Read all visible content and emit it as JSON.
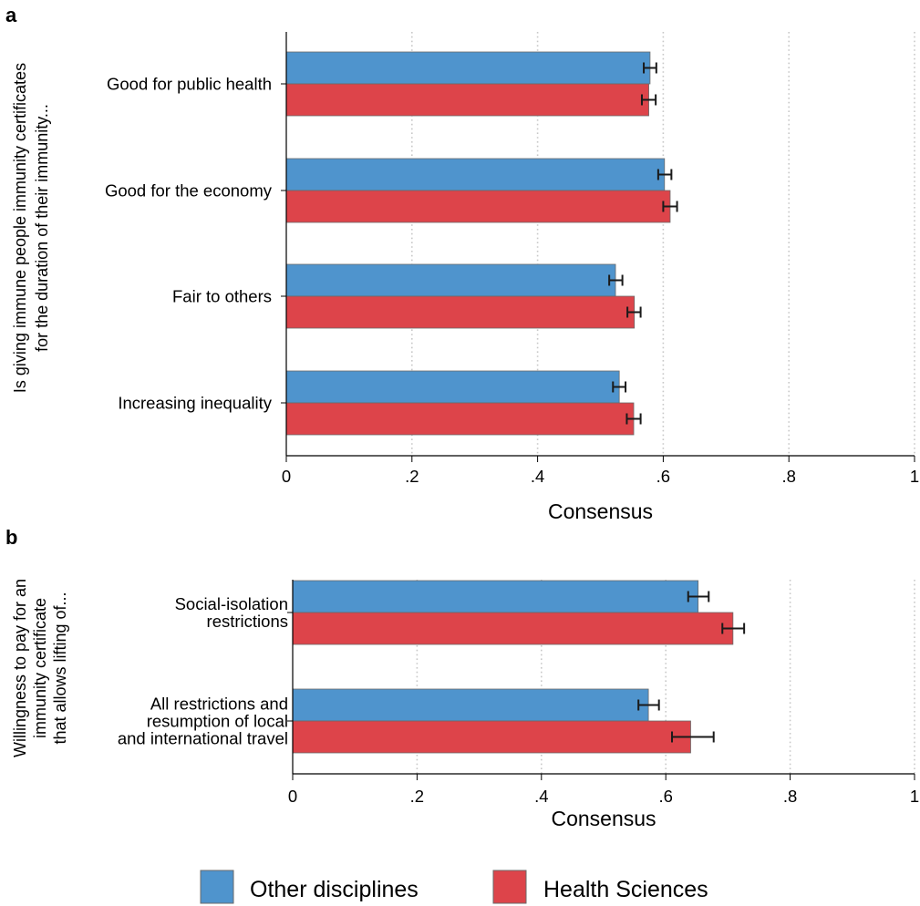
{
  "colors": {
    "other": "#4f94cd",
    "health": "#dd444a",
    "bar_edge": "#6a6a6a",
    "errorbar": "#1a1a1a",
    "grid": "#c8c8c8"
  },
  "legend": {
    "placement": "bottom-center",
    "items": [
      {
        "label": "Other disciplines",
        "color": "#4f94cd"
      },
      {
        "label": "Health Sciences",
        "color": "#dd444a"
      }
    ]
  },
  "chart_data": [
    {
      "panel": "a",
      "type": "bar",
      "orientation": "horizontal",
      "ylabel_lines": [
        "Is giving immune people immunity certificates",
        "for the duration of their immunity..."
      ],
      "xlabel": "Consensus",
      "xlim": [
        0,
        1
      ],
      "xticks": [
        0,
        0.2,
        0.4,
        0.6,
        0.8,
        1
      ],
      "xtick_labels": [
        "0",
        ".2",
        ".4",
        ".6",
        ".8",
        "1"
      ],
      "grid": "vertical dotted",
      "categories": [
        {
          "label_lines": [
            "Good for public health"
          ]
        },
        {
          "label_lines": [
            "Good for the economy"
          ]
        },
        {
          "label_lines": [
            "Fair to others"
          ]
        },
        {
          "label_lines": [
            "Increasing inequality"
          ]
        }
      ],
      "series": [
        {
          "name": "Other disciplines",
          "values": [
            0.579,
            0.602,
            0.524,
            0.53
          ],
          "err_low": [
            0.569,
            0.592,
            0.514,
            0.52
          ],
          "err_high": [
            0.589,
            0.613,
            0.535,
            0.54
          ]
        },
        {
          "name": "Health Sciences",
          "values": [
            0.577,
            0.611,
            0.554,
            0.553
          ],
          "err_low": [
            0.566,
            0.6,
            0.543,
            0.542
          ],
          "err_high": [
            0.588,
            0.622,
            0.564,
            0.564
          ]
        }
      ]
    },
    {
      "panel": "b",
      "type": "bar",
      "orientation": "horizontal",
      "ylabel_lines": [
        "Willingness to pay for an",
        "immunity certificate",
        "that allows lifting of..."
      ],
      "xlabel": "Consensus",
      "xlim": [
        0,
        1
      ],
      "xticks": [
        0,
        0.2,
        0.4,
        0.6,
        0.8,
        1
      ],
      "xtick_labels": [
        "0",
        ".2",
        ".4",
        ".6",
        ".8",
        "1"
      ],
      "grid": "vertical dotted",
      "categories": [
        {
          "label_lines": [
            "Social-isolation",
            "restrictions"
          ]
        },
        {
          "label_lines": [
            "All restrictions and",
            "resumption of local",
            "and international travel"
          ]
        }
      ],
      "series": [
        {
          "name": "Other disciplines",
          "values": [
            0.652,
            0.572
          ],
          "err_low": [
            0.636,
            0.556
          ],
          "err_high": [
            0.669,
            0.589
          ]
        },
        {
          "name": "Health Sciences",
          "values": [
            0.708,
            0.64
          ],
          "err_low": [
            0.691,
            0.61
          ],
          "err_high": [
            0.726,
            0.677
          ]
        }
      ]
    }
  ]
}
